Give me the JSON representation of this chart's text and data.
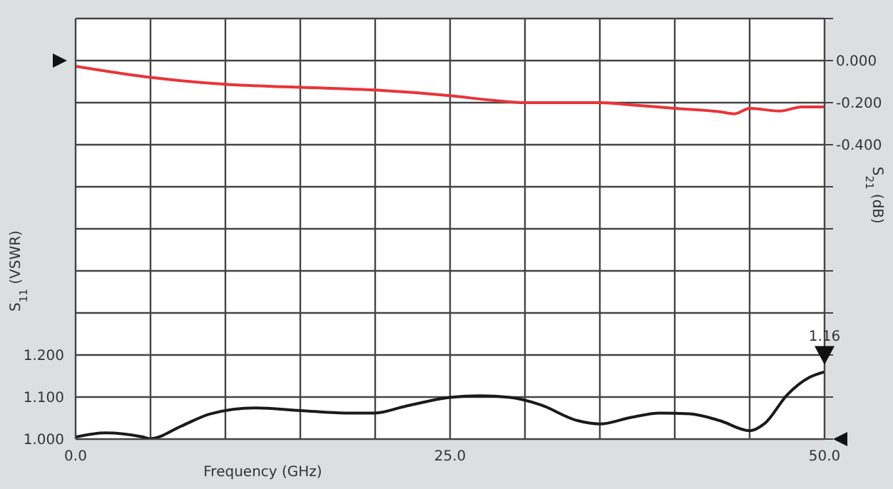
{
  "chart_data": {
    "type": "line",
    "xlabel": "Frequency (GHz)",
    "ylabel": "S$_{11}$ (VSWR)",
    "y2label": "S$_{21}$ (dB)",
    "xlim": [
      0,
      50
    ],
    "xticks": [
      {
        "value": 0,
        "label": "0.0"
      },
      {
        "value": 5,
        "label": null
      },
      {
        "value": 10,
        "label": null
      },
      {
        "value": 15,
        "label": null
      },
      {
        "value": 20,
        "label": null
      },
      {
        "value": 25,
        "label": "25.0"
      },
      {
        "value": 30,
        "label": null
      },
      {
        "value": 35,
        "label": null
      },
      {
        "value": 40,
        "label": null
      },
      {
        "value": 45,
        "label": null
      },
      {
        "value": 50,
        "label": "50.0"
      }
    ],
    "ylim": [
      1.0,
      2.0
    ],
    "yticks": [
      {
        "value": 1.0,
        "label": "1.000"
      },
      {
        "value": 1.1,
        "label": "1.100"
      },
      {
        "value": 1.2,
        "label": "1.200"
      },
      {
        "value": 1.3,
        "label": null
      },
      {
        "value": 1.4,
        "label": null
      },
      {
        "value": 1.5,
        "label": null
      },
      {
        "value": 1.6,
        "label": null
      },
      {
        "value": 1.7,
        "label": null
      },
      {
        "value": 1.8,
        "label": null
      },
      {
        "value": 1.9,
        "label": null
      },
      {
        "value": 2.0,
        "label": null
      }
    ],
    "y2lim": [
      -1.8,
      0.2
    ],
    "y2ticks": [
      {
        "value": -1.8,
        "label": null
      },
      {
        "value": -1.6,
        "label": null
      },
      {
        "value": -1.4,
        "label": null
      },
      {
        "value": -1.2,
        "label": null
      },
      {
        "value": -1.0,
        "label": null
      },
      {
        "value": -0.8,
        "label": null
      },
      {
        "value": -0.6,
        "label": null
      },
      {
        "value": -0.4,
        "label": "-0.400"
      },
      {
        "value": -0.2,
        "label": "-0.200"
      },
      {
        "value": 0,
        "label": "0.000"
      },
      {
        "value": 0.2,
        "label": null
      }
    ],
    "grid": true,
    "legend": false,
    "marker": "none",
    "line_style": "solid",
    "annotations": [
      {
        "text": "1.16",
        "x": 50,
        "y": 1.16
      }
    ],
    "series": [
      {
        "color": "#e8343a",
        "axis": "y2",
        "x": [
          0,
          5,
          10,
          15,
          20,
          25,
          28,
          30,
          35,
          37,
          40,
          43,
          44,
          45,
          47,
          48.5,
          50
        ],
        "values": [
          -0.027,
          -0.08,
          -0.113,
          -0.127,
          -0.14,
          -0.167,
          -0.19,
          -0.2,
          -0.2,
          -0.21,
          -0.227,
          -0.243,
          -0.253,
          -0.227,
          -0.24,
          -0.22,
          -0.22
        ]
      },
      {
        "color": "#1a1a1a",
        "axis": "y",
        "x": [
          0,
          2,
          4.5,
          5,
          7,
          9,
          12,
          15,
          18,
          20,
          22,
          25,
          27,
          29,
          31,
          33.5,
          35,
          37,
          39,
          41,
          43,
          45,
          46,
          47.5,
          49,
          50
        ],
        "values": [
          1.005,
          1.015,
          1.005,
          1.001,
          1.03,
          1.06,
          1.074,
          1.068,
          1.062,
          1.062,
          1.078,
          1.099,
          1.103,
          1.099,
          1.082,
          1.044,
          1.036,
          1.051,
          1.062,
          1.06,
          1.044,
          1.02,
          1.037,
          1.105,
          1.147,
          1.16
        ]
      }
    ]
  }
}
